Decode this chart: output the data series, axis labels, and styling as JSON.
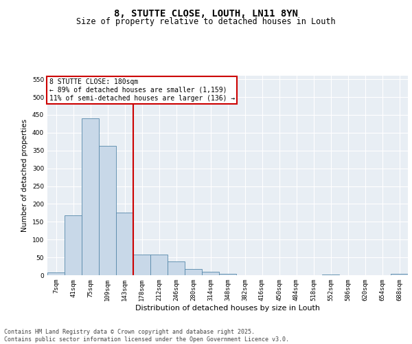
{
  "title1": "8, STUTTE CLOSE, LOUTH, LN11 8YN",
  "title2": "Size of property relative to detached houses in Louth",
  "xlabel": "Distribution of detached houses by size in Louth",
  "ylabel": "Number of detached properties",
  "categories": [
    "7sqm",
    "41sqm",
    "75sqm",
    "109sqm",
    "143sqm",
    "178sqm",
    "212sqm",
    "246sqm",
    "280sqm",
    "314sqm",
    "348sqm",
    "382sqm",
    "416sqm",
    "450sqm",
    "484sqm",
    "518sqm",
    "552sqm",
    "586sqm",
    "620sqm",
    "654sqm",
    "688sqm"
  ],
  "values": [
    7,
    168,
    440,
    363,
    175,
    57,
    57,
    39,
    18,
    10,
    4,
    0,
    0,
    0,
    0,
    0,
    2,
    0,
    0,
    0,
    3
  ],
  "bar_color": "#c8d8e8",
  "bar_edge_color": "#5588aa",
  "vline_x": 4.5,
  "vline_color": "#cc0000",
  "annotation_text": "8 STUTTE CLOSE: 180sqm\n← 89% of detached houses are smaller (1,159)\n11% of semi-detached houses are larger (136) →",
  "annotation_box_color": "#ffffff",
  "annotation_box_edge": "#cc0000",
  "ylim": [
    0,
    560
  ],
  "yticks": [
    0,
    50,
    100,
    150,
    200,
    250,
    300,
    350,
    400,
    450,
    500,
    550
  ],
  "bg_color": "#e8eef4",
  "footer_text": "Contains HM Land Registry data © Crown copyright and database right 2025.\nContains public sector information licensed under the Open Government Licence v3.0.",
  "title_fontsize": 10,
  "subtitle_fontsize": 8.5,
  "tick_fontsize": 6.5,
  "xlabel_fontsize": 8,
  "ylabel_fontsize": 7.5,
  "annotation_fontsize": 7,
  "footer_fontsize": 6
}
